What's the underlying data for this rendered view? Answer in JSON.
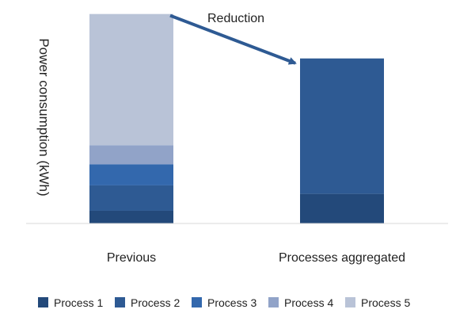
{
  "chart_data": {
    "type": "bar",
    "stacked": true,
    "ylabel": "Power consumption (kWh)",
    "xlabel": "",
    "categories": [
      "Previous",
      "Processes aggregated"
    ],
    "series": [
      {
        "name": "Process 1",
        "color": "#23497a",
        "values": [
          6,
          14
        ]
      },
      {
        "name": "Process 2",
        "color": "#2e5a93",
        "values": [
          12,
          64
        ]
      },
      {
        "name": "Process 3",
        "color": "#3368ad",
        "values": [
          10,
          0
        ]
      },
      {
        "name": "Process 4",
        "color": "#91a3c8",
        "values": [
          9,
          0
        ]
      },
      {
        "name": "Process 5",
        "color": "#b9c3d7",
        "values": [
          62,
          0
        ]
      }
    ],
    "ylim": [
      0,
      100
    ],
    "grid": false,
    "legend_position": "bottom",
    "annotation": {
      "text": "Reduction",
      "from_category": "Previous",
      "to_category": "Processes aggregated",
      "arrow_color": "#2e5a93"
    }
  }
}
